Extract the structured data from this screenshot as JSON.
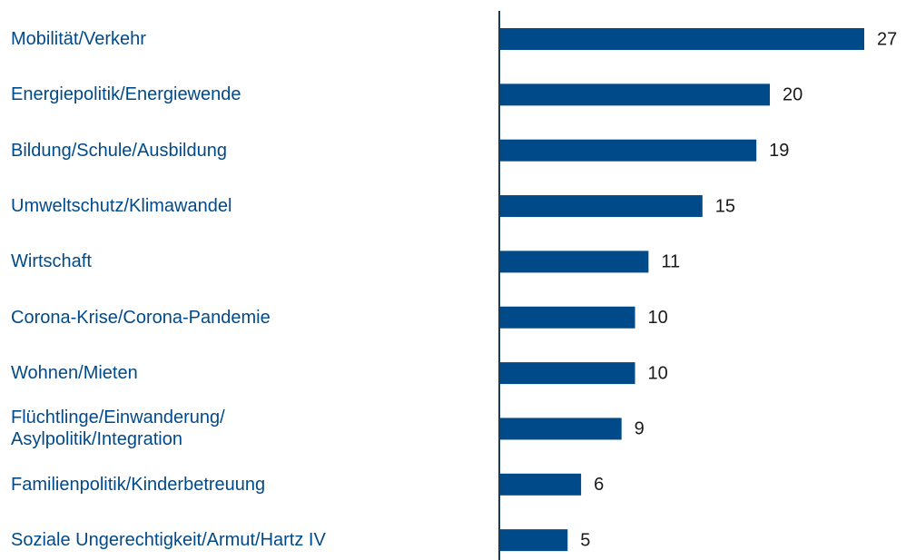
{
  "chart_data": {
    "type": "bar",
    "orientation": "horizontal",
    "categories": [
      "Mobilität/Verkehr",
      "Energiepolitik/Energiewende",
      "Bildung/Schule/Ausbildung",
      "Umweltschutz/Klimawandel",
      "Wirtschaft",
      "Corona-Krise/Corona-Pandemie",
      "Wohnen/Mieten",
      "Flüchtlinge/Einwanderung/\nAsylpolitik/Integration",
      "Familienpolitik/Kinderbetreuung",
      "Soziale Ungerechtigkeit/Armut/Hartz IV"
    ],
    "values": [
      27,
      20,
      19,
      15,
      11,
      10,
      10,
      9,
      6,
      5
    ],
    "color": "#004a8a",
    "xlim": [
      0,
      27
    ]
  }
}
